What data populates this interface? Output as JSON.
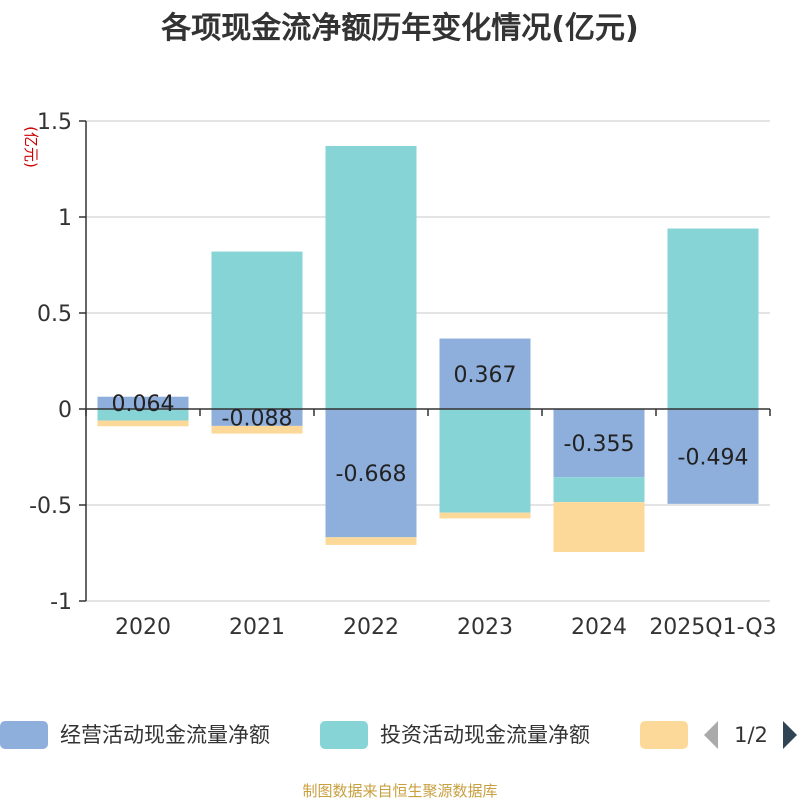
{
  "chart_data": {
    "type": "bar",
    "stacked": true,
    "title": "各项现金流净额历年变化情况(亿元)",
    "ylabel": "(亿元)",
    "ylim": [
      -1,
      1.5
    ],
    "yticks": [
      -1,
      -0.5,
      0,
      0.5,
      1,
      1.5
    ],
    "ytick_labels": [
      "-1",
      "-0.5",
      "0",
      "0.5",
      "1",
      "1.5"
    ],
    "grid": true,
    "categories": [
      "2020",
      "2021",
      "2022",
      "2023",
      "2024",
      "2025Q1-Q3"
    ],
    "series": [
      {
        "name": "经营活动现金流量净额",
        "color": "#8eaedb",
        "values": [
          0.064,
          -0.088,
          -0.668,
          0.367,
          -0.355,
          -0.494
        ],
        "labels": [
          "0.064",
          "-0.088",
          "-0.668",
          "0.367",
          "-0.355",
          "-0.494"
        ]
      },
      {
        "name": "投资活动现金流量净额",
        "color": "#86d4d6",
        "values": [
          -0.06,
          0.82,
          1.37,
          -0.54,
          -0.13,
          0.94
        ]
      },
      {
        "name": "",
        "color": "#fdd999",
        "values": [
          -0.03,
          -0.04,
          -0.04,
          -0.03,
          -0.26,
          0
        ]
      }
    ],
    "legend": {
      "position": "bottom",
      "page": "1/2"
    },
    "source": "制图数据来自恒生聚源数据库"
  }
}
